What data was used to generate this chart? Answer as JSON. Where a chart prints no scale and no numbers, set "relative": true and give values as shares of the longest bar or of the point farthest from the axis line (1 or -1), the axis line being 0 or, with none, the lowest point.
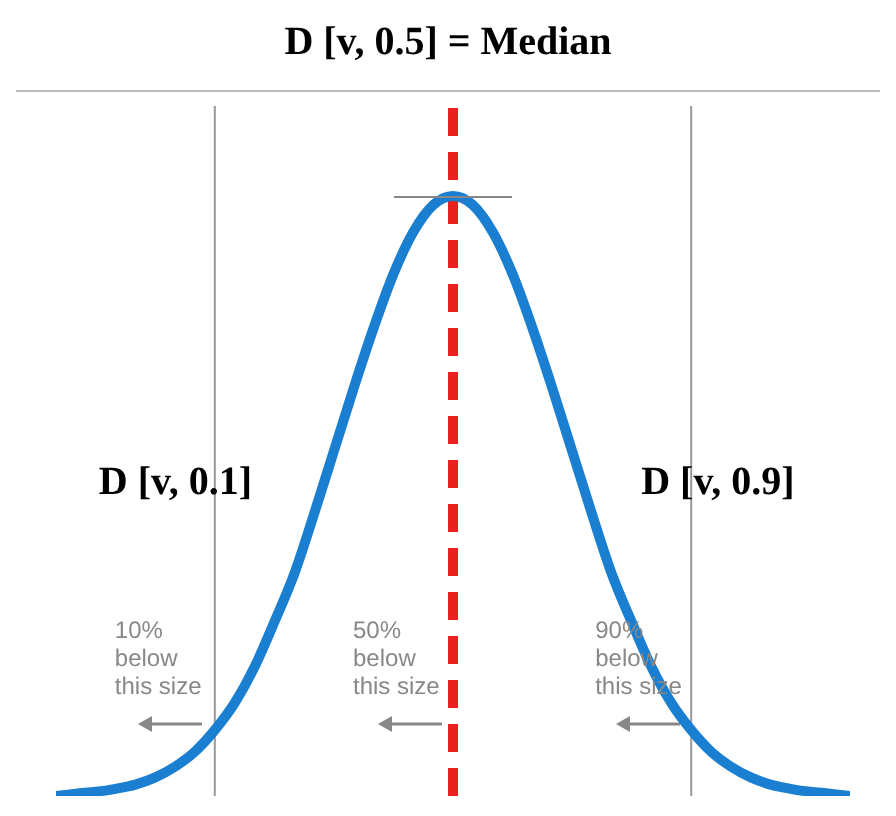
{
  "chart_data": {
    "type": "line",
    "title": "D [v, 0.5] = Median",
    "relative": true,
    "tick_labels": false,
    "marker": "none",
    "line_style": "solid",
    "categories": [
      null,
      null,
      null,
      null,
      null,
      null,
      null,
      null,
      null,
      null,
      null,
      null,
      null,
      null,
      null,
      null,
      null,
      null,
      null,
      null,
      null,
      null,
      null,
      null,
      null,
      null,
      null,
      null,
      null,
      null,
      null,
      null,
      null,
      null,
      null,
      null,
      null,
      null,
      null,
      null,
      null
    ],
    "series": [
      {
        "color": "#1a7fd0",
        "values": [
          0,
          0.004,
          0.007,
          0.012,
          0.019,
          0.031,
          0.049,
          0.074,
          0.11,
          0.155,
          0.215,
          0.29,
          0.37,
          0.47,
          0.575,
          0.68,
          0.78,
          0.87,
          0.94,
          0.985,
          1,
          0.985,
          0.94,
          0.87,
          0.78,
          0.68,
          0.575,
          0.47,
          0.37,
          0.29,
          0.215,
          0.155,
          0.11,
          0.074,
          0.049,
          0.031,
          0.019,
          0.012,
          0.007,
          0.004,
          0
        ]
      }
    ],
    "annotations": [
      "D [v, 0.1]",
      "D [v, 0.9]",
      "10%\nbelow\nthis size",
      "50%\nbelow\nthis size",
      "90%\nbelow\nthis size"
    ]
  }
}
